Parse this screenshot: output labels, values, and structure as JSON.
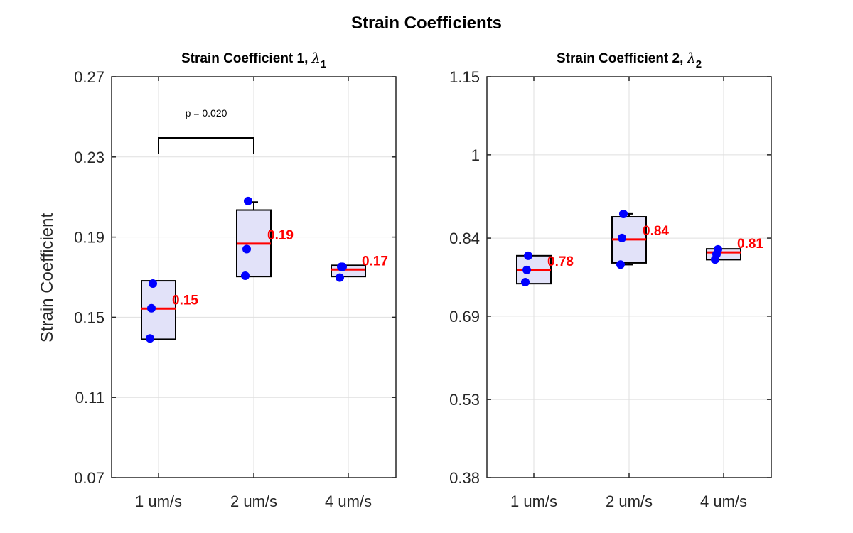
{
  "chart_data": {
    "title": "Strain Coefficients",
    "ylabel": "Strain Coefficient",
    "panels": [
      {
        "type": "box",
        "title": "Strain Coefficient 1, ",
        "title_symbol": "λ",
        "title_subscript": "1",
        "ylim": [
          0.07,
          0.27
        ],
        "yticks": [
          "0.07",
          "0.11",
          "0.15",
          "0.19",
          "0.23",
          "0.27"
        ],
        "yticks_values": [
          0.07,
          0.11,
          0.15,
          0.19,
          0.23,
          0.27
        ],
        "grid": true,
        "categories": [
          "1 um/s",
          "2 um/s",
          "4 um/s"
        ],
        "boxes": [
          {
            "q1": 0.139,
            "median": 0.1543,
            "q3": 0.1682,
            "whisker_low": 0.139,
            "whisker_high": 0.1682,
            "points": [
              0.1668,
              0.1545,
              0.1394
            ],
            "median_label": "0.15"
          },
          {
            "q1": 0.1703,
            "median": 0.1867,
            "q3": 0.2035,
            "whisker_low": 0.1703,
            "whisker_high": 0.2075,
            "points": [
              0.208,
              0.184,
              0.1707
            ],
            "median_label": "0.19"
          },
          {
            "q1": 0.1703,
            "median": 0.1738,
            "q3": 0.1759,
            "whisker_low": 0.1703,
            "whisker_high": 0.1759,
            "points": [
              0.1752,
              0.1752,
              0.1698
            ],
            "median_label": "0.17"
          }
        ],
        "significance": {
          "from": "1 um/s",
          "to": "2 um/s",
          "y": 0.2395,
          "label": "p = 0.020"
        }
      },
      {
        "type": "box",
        "title": "Strain Coefficient 2, ",
        "title_symbol": "λ",
        "title_subscript": "2",
        "ylim": [
          0.38,
          1.15
        ],
        "yticks": [
          "0.38",
          "0.53",
          "0.69",
          "0.84",
          "1",
          "1.15"
        ],
        "yticks_values": [
          0.38,
          0.53,
          0.69,
          0.84,
          1.0,
          1.15
        ],
        "grid": true,
        "categories": [
          "1 um/s",
          "2 um/s",
          "4 um/s"
        ],
        "boxes": [
          {
            "q1": 0.7525,
            "median": 0.7788,
            "q3": 0.8062,
            "whisker_low": 0.7525,
            "whisker_high": 0.8062,
            "points": [
              0.8062,
              0.7788,
              0.7555
            ],
            "median_label": "0.78"
          },
          {
            "q1": 0.7924,
            "median": 0.8376,
            "q3": 0.881,
            "whisker_low": 0.789,
            "whisker_high": 0.8867,
            "points": [
              0.8865,
              0.8402,
              0.7893
            ],
            "median_label": "0.84"
          },
          {
            "q1": 0.7986,
            "median": 0.8126,
            "q3": 0.8194,
            "whisker_low": 0.7986,
            "whisker_high": 0.8194,
            "points": [
              0.8185,
              0.8092,
              0.799
            ],
            "median_label": "0.81"
          }
        ]
      }
    ]
  }
}
